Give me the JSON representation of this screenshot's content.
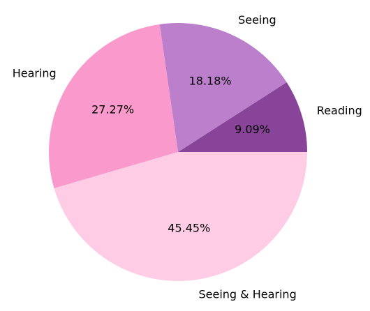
{
  "chart_data": {
    "type": "pie",
    "slices": [
      {
        "label": "Reading",
        "value": 9.09,
        "display": "9.09%",
        "color": "#884499"
      },
      {
        "label": "Seeing",
        "value": 18.18,
        "display": "18.18%",
        "color": "#bb7fcc"
      },
      {
        "label": "Hearing",
        "value": 27.27,
        "display": "27.27%",
        "color": "#f999cc"
      },
      {
        "label": "Seeing & Hearing",
        "value": 45.45,
        "display": "45.45%",
        "color": "#ffccE6"
      }
    ],
    "start_angle_deg": 0,
    "direction": "counterclockwise"
  }
}
